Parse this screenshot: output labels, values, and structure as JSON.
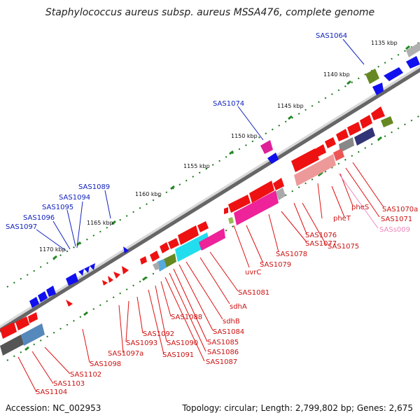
{
  "title": "Staphylococcus aureus subsp. aureus MSSA476, complete genome",
  "accession": "Accession: NC_002953",
  "topology": "Topology: circular; Length: 2,799,802 bp; Genes: 2,675",
  "ticks": [
    "1135 kbp",
    "1140 kbp",
    "1145 kbp",
    "1150 kbp",
    "1155 kbp",
    "1160 kbp",
    "1165 kbp",
    "1170 kbp"
  ],
  "labels_blue": [
    "SAS1064",
    "SAS1074",
    "SAS1089",
    "SAS1094",
    "SAS1095",
    "SAS1096",
    "SAS1097"
  ],
  "labels_red": [
    "SAS1070a",
    "SAS1071",
    "pheS",
    "pheT",
    "SAS1075",
    "SAS1076",
    "SAS1077",
    "SAS1078",
    "SAS1079",
    "uvrC",
    "SAS1081",
    "sdhA",
    "sdhB",
    "SAS1084",
    "SAS1085",
    "SAS1086",
    "SAS1087",
    "SAS1088",
    "SAS1090",
    "SAS1091",
    "SAS1092",
    "SAS1093",
    "SAS1097a",
    "SAS1098",
    "SAS1102",
    "SAS1103",
    "SAS1104"
  ],
  "labels_pink": [
    "SASs009"
  ],
  "colors": {
    "blue_gene": "#1010ee",
    "red_gene": "#ee1111",
    "tick": "#228822",
    "axis": "#888888",
    "blue_label": "#1122bb",
    "red_label": "#cc1111",
    "pink_label": "#ee88bb"
  }
}
